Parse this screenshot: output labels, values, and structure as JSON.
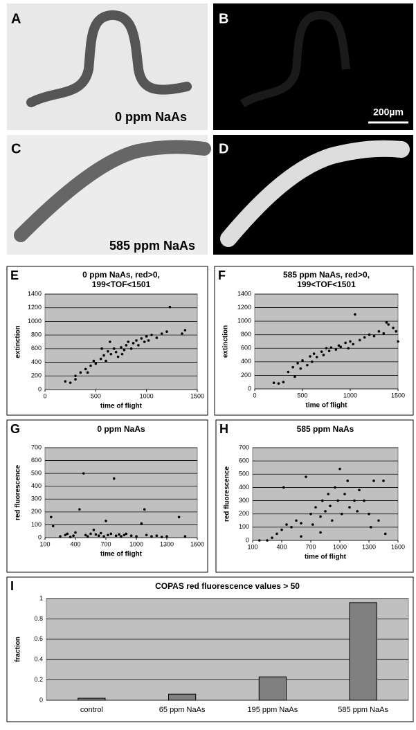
{
  "panels": [
    {
      "letter": "A",
      "caption": "0 ppm NaAs"
    },
    {
      "letter": "B",
      "caption": "200µm"
    },
    {
      "letter": "C",
      "caption": "585 ppm NaAs"
    },
    {
      "letter": "D"
    }
  ],
  "chart_data": [
    {
      "type": "scatter",
      "panel": "E",
      "title": [
        "0 ppm NaAs, red>0,",
        "199<TOF<1501"
      ],
      "x_label": "time of flight",
      "y_label": "extinction",
      "color": "#000000",
      "grid": true,
      "xlim": [
        0,
        1500
      ],
      "xticks": [
        0,
        500,
        1000,
        1500
      ],
      "ylim": [
        0,
        1400
      ],
      "yticks": [
        0,
        200,
        400,
        600,
        800,
        1000,
        1200,
        1400
      ],
      "x": [
        200,
        250,
        300,
        350,
        400,
        450,
        480,
        500,
        550,
        580,
        600,
        620,
        650,
        680,
        700,
        720,
        750,
        780,
        800,
        820,
        850,
        870,
        900,
        920,
        950,
        980,
        1000,
        1020,
        1050,
        1100,
        1150,
        1200,
        1230,
        1350,
        1380,
        300,
        420,
        560,
        640,
        760
      ],
      "values": [
        120,
        100,
        200,
        250,
        300,
        350,
        420,
        380,
        450,
        500,
        420,
        560,
        520,
        600,
        550,
        480,
        620,
        580,
        650,
        700,
        600,
        680,
        720,
        650,
        750,
        700,
        780,
        720,
        800,
        760,
        820,
        850,
        1210,
        820,
        870,
        150,
        250,
        600,
        700,
        520
      ]
    },
    {
      "type": "scatter",
      "panel": "F",
      "title": [
        "585 ppm NaAs, red>0,",
        "199<TOF<1501"
      ],
      "x_label": "time of flight",
      "y_label": "extinction",
      "color": "#000000",
      "grid": true,
      "xlim": [
        0,
        1500
      ],
      "xticks": [
        0,
        500,
        1000,
        1500
      ],
      "ylim": [
        0,
        1400
      ],
      "yticks": [
        0,
        200,
        400,
        600,
        800,
        1000,
        1200,
        1400
      ],
      "x": [
        200,
        250,
        300,
        350,
        400,
        420,
        450,
        480,
        500,
        550,
        580,
        600,
        620,
        650,
        700,
        720,
        750,
        780,
        800,
        850,
        880,
        900,
        950,
        980,
        1000,
        1030,
        1050,
        1100,
        1150,
        1200,
        1250,
        1300,
        1350,
        1400,
        1450,
        1480,
        1500,
        1380
      ],
      "values": [
        90,
        80,
        100,
        250,
        320,
        180,
        380,
        300,
        420,
        350,
        480,
        400,
        520,
        470,
        550,
        500,
        600,
        560,
        610,
        580,
        640,
        620,
        680,
        600,
        700,
        660,
        1100,
        720,
        760,
        800,
        780,
        850,
        820,
        950,
        900,
        850,
        700,
        980
      ]
    },
    {
      "type": "scatter",
      "panel": "G",
      "title": [
        "0 ppm NaAs"
      ],
      "x_label": "time of flight",
      "y_label": "red fluorescence",
      "color": "#000000",
      "grid": true,
      "xlim": [
        100,
        1600
      ],
      "xticks": [
        100,
        400,
        700,
        1000,
        1300,
        1600
      ],
      "ylim": [
        0,
        700
      ],
      "yticks": [
        0,
        100,
        200,
        300,
        400,
        500,
        600,
        700
      ],
      "x": [
        160,
        180,
        250,
        300,
        320,
        350,
        380,
        400,
        440,
        480,
        500,
        520,
        550,
        580,
        600,
        630,
        650,
        680,
        700,
        720,
        750,
        780,
        800,
        830,
        850,
        880,
        900,
        950,
        1000,
        1050,
        1080,
        1100,
        1150,
        1200,
        1250,
        1300,
        1420,
        1480
      ],
      "values": [
        160,
        90,
        10,
        20,
        30,
        5,
        15,
        40,
        220,
        500,
        20,
        10,
        30,
        60,
        25,
        15,
        35,
        10,
        130,
        20,
        30,
        460,
        15,
        25,
        10,
        20,
        30,
        15,
        10,
        110,
        220,
        20,
        10,
        15,
        5,
        10,
        160,
        10
      ]
    },
    {
      "type": "scatter",
      "panel": "H",
      "title": [
        "585 ppm NaAs"
      ],
      "x_label": "time of flight",
      "y_label": "red fluorescence",
      "color": "#000000",
      "grid": true,
      "xlim": [
        100,
        1600
      ],
      "xticks": [
        100,
        400,
        700,
        1000,
        1300,
        1600
      ],
      "ylim": [
        0,
        700
      ],
      "yticks": [
        0,
        100,
        200,
        300,
        400,
        500,
        600,
        700
      ],
      "x": [
        170,
        250,
        300,
        350,
        400,
        420,
        450,
        500,
        550,
        600,
        650,
        700,
        720,
        750,
        800,
        820,
        850,
        880,
        900,
        920,
        950,
        980,
        1000,
        1020,
        1050,
        1080,
        1100,
        1150,
        1180,
        1200,
        1250,
        1300,
        1350,
        1400,
        1450,
        1470,
        1320,
        600,
        800
      ],
      "values": [
        0,
        0,
        20,
        50,
        80,
        400,
        120,
        100,
        150,
        130,
        480,
        200,
        120,
        250,
        180,
        300,
        220,
        350,
        260,
        150,
        400,
        300,
        540,
        200,
        350,
        450,
        250,
        300,
        220,
        380,
        300,
        200,
        450,
        150,
        450,
        50,
        100,
        30,
        60
      ]
    },
    {
      "type": "bar",
      "panel": "I",
      "title": [
        "COPAS red fluorescence values > 50"
      ],
      "y_label": "fraction",
      "color": "#808080",
      "grid": true,
      "categories": [
        "control",
        "65 ppm NaAs",
        "195 ppm NaAs",
        "585 ppm NaAs"
      ],
      "values": [
        0.02,
        0.06,
        0.23,
        0.96
      ],
      "ylim": [
        0,
        1
      ],
      "yticks": [
        0,
        0.2,
        0.4,
        0.6,
        0.8,
        1
      ]
    }
  ]
}
